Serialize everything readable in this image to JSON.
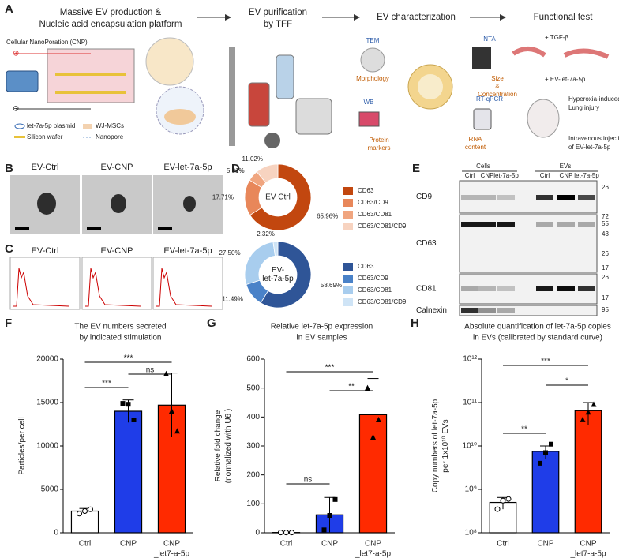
{
  "panel_a": {
    "label": "A",
    "steps": [
      [
        "Massive EV production &",
        "Nucleic acid encapsulation platform"
      ],
      [
        "EV purification",
        "by TFF"
      ],
      [
        "EV characterization"
      ],
      [
        "Functional test"
      ]
    ],
    "cnp": "Cellular NanoPoration (CNP)",
    "plus": "⊕",
    "minus": "⊖",
    "legend": [
      "let-7a-5p plasmid",
      "WJ-MSCs",
      "Silicon wafer",
      "Nanopore"
    ],
    "methods": [
      {
        "name": "TEM",
        "result": [
          "Morphology"
        ]
      },
      {
        "name": "NTA",
        "result": [
          "Size",
          "&",
          "Concentration"
        ]
      },
      {
        "name": "WB",
        "result": [
          "Protein",
          "markers"
        ]
      },
      {
        "name": "RT-qPCR",
        "result": [
          "RNA",
          "content"
        ]
      }
    ],
    "functional": [
      "+ TGF-β",
      "+ EV-let-7a-5p",
      "Hyperoxia-induced",
      "Lung injury",
      "Intravenous injection",
      "of EV-let-7a-5p"
    ]
  },
  "panel_b": {
    "label": "B",
    "captions": [
      "EV-Ctrl",
      "EV-CNP",
      "EV-let-7a-5p"
    ]
  },
  "panel_c": {
    "label": "C",
    "captions": [
      "EV-Ctrl",
      "EV-CNP",
      "EV-let-7a-5p"
    ]
  },
  "panel_e": {
    "label": "E",
    "groups": [
      "Cells",
      "EVs"
    ],
    "lanes": [
      "Ctrl",
      "CNP",
      "let-7a-5p",
      "Ctrl",
      "CNP",
      "let-7a-5p"
    ],
    "blots": [
      {
        "name": "CD9",
        "markers": [
          26
        ]
      },
      {
        "name": "CD63",
        "markers": [
          72,
          55,
          43,
          26,
          17
        ]
      },
      {
        "name": "CD81",
        "markers": [
          26,
          17
        ]
      },
      {
        "name": "Calnexin",
        "markers": [
          95
        ]
      }
    ]
  },
  "chart_data": [
    {
      "type": "pie",
      "panel_label": "D",
      "center_label": [
        "EV-Ctrl"
      ],
      "categories": [
        "CD63",
        "CD63/CD9",
        "CD63/CD81",
        "CD63/CD81/CD9"
      ],
      "values": [
        65.96,
        17.71,
        5.31,
        11.02
      ],
      "value_labels": [
        "65.96%",
        "17.71%",
        "5.31%",
        "11.02%"
      ],
      "colors": [
        "#c2470f",
        "#e8875a",
        "#f0a57f",
        "#f7d3c0"
      ]
    },
    {
      "type": "pie",
      "center_label": [
        "EV-",
        "let-7a-5p"
      ],
      "categories": [
        "CD63",
        "CD63/CD9",
        "CD63/CD81",
        "CD63/CD81/CD9"
      ],
      "values": [
        58.69,
        11.49,
        27.5,
        2.32
      ],
      "value_labels": [
        "58.69%",
        "11.49%",
        "27.50%",
        "2.32%"
      ],
      "colors": [
        "#2f5597",
        "#4a82c8",
        "#a8cdee",
        "#cfe4f6"
      ]
    },
    {
      "type": "bar",
      "panel_label": "F",
      "title": [
        "The EV numbers secreted",
        "by indicated stimulation"
      ],
      "ylabel": [
        "Particles/per cell"
      ],
      "categories": [
        [
          "Ctrl"
        ],
        [
          "CNP"
        ],
        [
          "CNP",
          "_let7-a-5p"
        ]
      ],
      "values": [
        2500,
        14000,
        14700
      ],
      "errors": [
        300,
        1300,
        3700
      ],
      "points": [
        [
          2200,
          2500,
          2700
        ],
        [
          14900,
          14800,
          13000
        ],
        [
          18300,
          14000,
          11700
        ]
      ],
      "colors": [
        "#ffffff",
        "#1f3de8",
        "#ff2a00"
      ],
      "ylim": [
        0,
        20000
      ],
      "yticks": [
        0,
        5000,
        10000,
        15000,
        20000
      ],
      "significance": [
        "***",
        "ns",
        "***"
      ]
    },
    {
      "type": "bar",
      "panel_label": "G",
      "title": [
        "Relative let-7a-5p expression",
        "in EV samples"
      ],
      "ylabel": [
        "Relative fold change",
        "(normalized with U6 )"
      ],
      "categories": [
        [
          "Ctrl"
        ],
        [
          "CNP"
        ],
        [
          "CNP",
          "_let7-a-5p"
        ]
      ],
      "values": [
        1,
        62,
        408
      ],
      "errors": [
        1,
        60,
        125
      ],
      "points": [
        [
          1,
          1,
          1
        ],
        [
          10,
          60,
          115
        ],
        [
          500,
          330,
          390
        ]
      ],
      "colors": [
        "#ffffff",
        "#1f3de8",
        "#ff2a00"
      ],
      "ylim": [
        0,
        600
      ],
      "yticks": [
        0,
        100,
        200,
        300,
        400,
        500,
        600
      ],
      "significance": [
        "ns",
        "**",
        "***"
      ]
    },
    {
      "type": "bar",
      "panel_label": "H",
      "title": [
        "Absolute quantification of let-7a-5p copies",
        "in EVs (calibrated by standard curve)"
      ],
      "ylabel": [
        "Copy numbers of let-7a-5p",
        "per 1x10¹⁰ EVs"
      ],
      "categories": [
        [
          "Ctrl"
        ],
        [
          "CNP"
        ],
        [
          "CNP",
          "_let7-a-5p"
        ]
      ],
      "values": [
        500000000,
        7500000000,
        65000000000
      ],
      "errors": [
        150000000,
        2500000000,
        35000000000
      ],
      "points": [
        [
          350000000,
          550000000,
          600000000
        ],
        [
          4000000000,
          7000000000,
          11000000000
        ],
        [
          40000000000,
          60000000000,
          90000000000
        ]
      ],
      "colors": [
        "#ffffff",
        "#1f3de8",
        "#ff2a00"
      ],
      "log_scale": true,
      "ylim": [
        100000000,
        1000000000000
      ],
      "yticks": [
        {
          "value": 100000000,
          "label": "10⁸"
        },
        {
          "value": 1000000000,
          "label": "10⁹"
        },
        {
          "value": 10000000000,
          "label": "10¹⁰"
        },
        {
          "value": 100000000000,
          "label": "10¹¹"
        },
        {
          "value": 1000000000000,
          "label": "10¹²"
        }
      ],
      "significance": [
        "**",
        "*",
        "***"
      ]
    }
  ]
}
